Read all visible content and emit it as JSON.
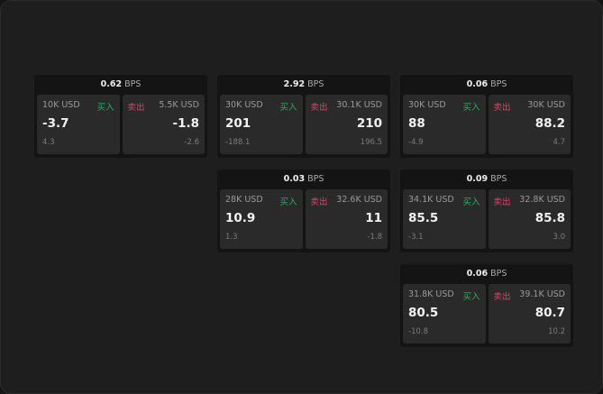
{
  "unit": "BPS",
  "buy_label": "买入",
  "sell_label": "卖出",
  "colors": {
    "buy": "#2fae5e",
    "sell": "#d6456b"
  },
  "cards": [
    {
      "spread": "0.62",
      "buy": {
        "amount": "10K USD",
        "price": "-3.7",
        "change": "4.3"
      },
      "sell": {
        "amount": "5.5K USD",
        "price": "-1.8",
        "change": "-2.6"
      }
    },
    {
      "spread": "2.92",
      "buy": {
        "amount": "30K USD",
        "price": "201",
        "change": "-188.1"
      },
      "sell": {
        "amount": "30.1K USD",
        "price": "210",
        "change": "196.5"
      }
    },
    {
      "spread": "0.06",
      "buy": {
        "amount": "30K USD",
        "price": "88",
        "change": "-4.9"
      },
      "sell": {
        "amount": "30K USD",
        "price": "88.2",
        "change": "4.7"
      }
    },
    {
      "spread": "0.03",
      "buy": {
        "amount": "28K USD",
        "price": "10.9",
        "change": "1.3"
      },
      "sell": {
        "amount": "32.6K USD",
        "price": "11",
        "change": "-1.8"
      }
    },
    {
      "spread": "0.09",
      "buy": {
        "amount": "34.1K USD",
        "price": "85.5",
        "change": "-3.1"
      },
      "sell": {
        "amount": "32.8K USD",
        "price": "85.8",
        "change": "3.0"
      }
    },
    {
      "spread": "0.06",
      "buy": {
        "amount": "31.8K USD",
        "price": "80.5",
        "change": "-10.8"
      },
      "sell": {
        "amount": "39.1K USD",
        "price": "80.7",
        "change": "10.2"
      }
    }
  ]
}
